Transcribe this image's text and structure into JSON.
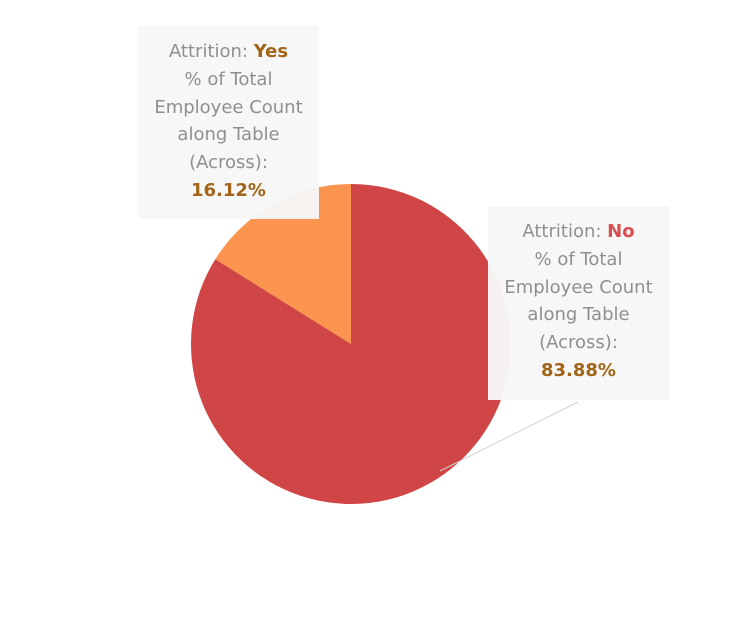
{
  "chart_data": {
    "type": "pie",
    "title": "",
    "slices": [
      {
        "category": "Yes",
        "value": 16.12,
        "color": "#fb944e",
        "tooltip": {
          "field_label": "Attrition:",
          "category": "Yes",
          "measure_lines": [
            "% of Total",
            "Employee Count",
            "along Table",
            "(Across):"
          ],
          "value_text": "16.12%"
        }
      },
      {
        "category": "No",
        "value": 83.88,
        "color": "#d04545",
        "tooltip": {
          "field_label": "Attrition:",
          "category": "No",
          "measure_lines": [
            "% of Total",
            "Employee Count",
            "along Table",
            "(Across):"
          ],
          "value_text": "83.88%"
        }
      }
    ]
  }
}
